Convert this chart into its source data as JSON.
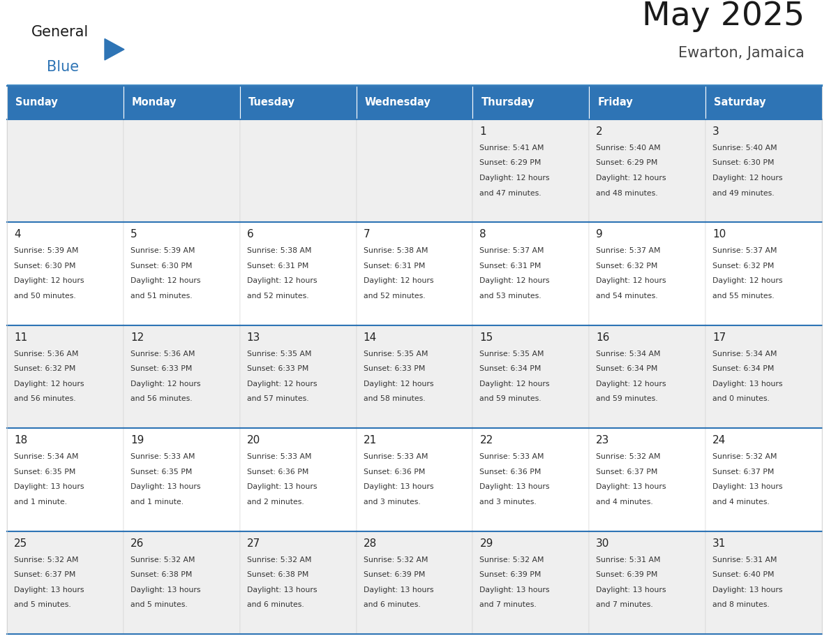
{
  "title": "May 2025",
  "subtitle": "Ewarton, Jamaica",
  "header_bg": "#2E74B5",
  "header_text_color": "#FFFFFF",
  "days_of_week": [
    "Sunday",
    "Monday",
    "Tuesday",
    "Wednesday",
    "Thursday",
    "Friday",
    "Saturday"
  ],
  "row_bg_even": "#EFEFEF",
  "row_bg_odd": "#FFFFFF",
  "cell_border_color": "#2E74B5",
  "day_number_color": "#222222",
  "cell_text_color": "#333333",
  "calendar": [
    [
      null,
      null,
      null,
      null,
      {
        "day": 1,
        "sunrise": "5:41 AM",
        "sunset": "6:29 PM",
        "daylight_line1": "Daylight: 12 hours",
        "daylight_line2": "and 47 minutes."
      },
      {
        "day": 2,
        "sunrise": "5:40 AM",
        "sunset": "6:29 PM",
        "daylight_line1": "Daylight: 12 hours",
        "daylight_line2": "and 48 minutes."
      },
      {
        "day": 3,
        "sunrise": "5:40 AM",
        "sunset": "6:30 PM",
        "daylight_line1": "Daylight: 12 hours",
        "daylight_line2": "and 49 minutes."
      }
    ],
    [
      {
        "day": 4,
        "sunrise": "5:39 AM",
        "sunset": "6:30 PM",
        "daylight_line1": "Daylight: 12 hours",
        "daylight_line2": "and 50 minutes."
      },
      {
        "day": 5,
        "sunrise": "5:39 AM",
        "sunset": "6:30 PM",
        "daylight_line1": "Daylight: 12 hours",
        "daylight_line2": "and 51 minutes."
      },
      {
        "day": 6,
        "sunrise": "5:38 AM",
        "sunset": "6:31 PM",
        "daylight_line1": "Daylight: 12 hours",
        "daylight_line2": "and 52 minutes."
      },
      {
        "day": 7,
        "sunrise": "5:38 AM",
        "sunset": "6:31 PM",
        "daylight_line1": "Daylight: 12 hours",
        "daylight_line2": "and 52 minutes."
      },
      {
        "day": 8,
        "sunrise": "5:37 AM",
        "sunset": "6:31 PM",
        "daylight_line1": "Daylight: 12 hours",
        "daylight_line2": "and 53 minutes."
      },
      {
        "day": 9,
        "sunrise": "5:37 AM",
        "sunset": "6:32 PM",
        "daylight_line1": "Daylight: 12 hours",
        "daylight_line2": "and 54 minutes."
      },
      {
        "day": 10,
        "sunrise": "5:37 AM",
        "sunset": "6:32 PM",
        "daylight_line1": "Daylight: 12 hours",
        "daylight_line2": "and 55 minutes."
      }
    ],
    [
      {
        "day": 11,
        "sunrise": "5:36 AM",
        "sunset": "6:32 PM",
        "daylight_line1": "Daylight: 12 hours",
        "daylight_line2": "and 56 minutes."
      },
      {
        "day": 12,
        "sunrise": "5:36 AM",
        "sunset": "6:33 PM",
        "daylight_line1": "Daylight: 12 hours",
        "daylight_line2": "and 56 minutes."
      },
      {
        "day": 13,
        "sunrise": "5:35 AM",
        "sunset": "6:33 PM",
        "daylight_line1": "Daylight: 12 hours",
        "daylight_line2": "and 57 minutes."
      },
      {
        "day": 14,
        "sunrise": "5:35 AM",
        "sunset": "6:33 PM",
        "daylight_line1": "Daylight: 12 hours",
        "daylight_line2": "and 58 minutes."
      },
      {
        "day": 15,
        "sunrise": "5:35 AM",
        "sunset": "6:34 PM",
        "daylight_line1": "Daylight: 12 hours",
        "daylight_line2": "and 59 minutes."
      },
      {
        "day": 16,
        "sunrise": "5:34 AM",
        "sunset": "6:34 PM",
        "daylight_line1": "Daylight: 12 hours",
        "daylight_line2": "and 59 minutes."
      },
      {
        "day": 17,
        "sunrise": "5:34 AM",
        "sunset": "6:34 PM",
        "daylight_line1": "Daylight: 13 hours",
        "daylight_line2": "and 0 minutes."
      }
    ],
    [
      {
        "day": 18,
        "sunrise": "5:34 AM",
        "sunset": "6:35 PM",
        "daylight_line1": "Daylight: 13 hours",
        "daylight_line2": "and 1 minute."
      },
      {
        "day": 19,
        "sunrise": "5:33 AM",
        "sunset": "6:35 PM",
        "daylight_line1": "Daylight: 13 hours",
        "daylight_line2": "and 1 minute."
      },
      {
        "day": 20,
        "sunrise": "5:33 AM",
        "sunset": "6:36 PM",
        "daylight_line1": "Daylight: 13 hours",
        "daylight_line2": "and 2 minutes."
      },
      {
        "day": 21,
        "sunrise": "5:33 AM",
        "sunset": "6:36 PM",
        "daylight_line1": "Daylight: 13 hours",
        "daylight_line2": "and 3 minutes."
      },
      {
        "day": 22,
        "sunrise": "5:33 AM",
        "sunset": "6:36 PM",
        "daylight_line1": "Daylight: 13 hours",
        "daylight_line2": "and 3 minutes."
      },
      {
        "day": 23,
        "sunrise": "5:32 AM",
        "sunset": "6:37 PM",
        "daylight_line1": "Daylight: 13 hours",
        "daylight_line2": "and 4 minutes."
      },
      {
        "day": 24,
        "sunrise": "5:32 AM",
        "sunset": "6:37 PM",
        "daylight_line1": "Daylight: 13 hours",
        "daylight_line2": "and 4 minutes."
      }
    ],
    [
      {
        "day": 25,
        "sunrise": "5:32 AM",
        "sunset": "6:37 PM",
        "daylight_line1": "Daylight: 13 hours",
        "daylight_line2": "and 5 minutes."
      },
      {
        "day": 26,
        "sunrise": "5:32 AM",
        "sunset": "6:38 PM",
        "daylight_line1": "Daylight: 13 hours",
        "daylight_line2": "and 5 minutes."
      },
      {
        "day": 27,
        "sunrise": "5:32 AM",
        "sunset": "6:38 PM",
        "daylight_line1": "Daylight: 13 hours",
        "daylight_line2": "and 6 minutes."
      },
      {
        "day": 28,
        "sunrise": "5:32 AM",
        "sunset": "6:39 PM",
        "daylight_line1": "Daylight: 13 hours",
        "daylight_line2": "and 6 minutes."
      },
      {
        "day": 29,
        "sunrise": "5:32 AM",
        "sunset": "6:39 PM",
        "daylight_line1": "Daylight: 13 hours",
        "daylight_line2": "and 7 minutes."
      },
      {
        "day": 30,
        "sunrise": "5:31 AM",
        "sunset": "6:39 PM",
        "daylight_line1": "Daylight: 13 hours",
        "daylight_line2": "and 7 minutes."
      },
      {
        "day": 31,
        "sunrise": "5:31 AM",
        "sunset": "6:40 PM",
        "daylight_line1": "Daylight: 13 hours",
        "daylight_line2": "and 8 minutes."
      }
    ]
  ]
}
